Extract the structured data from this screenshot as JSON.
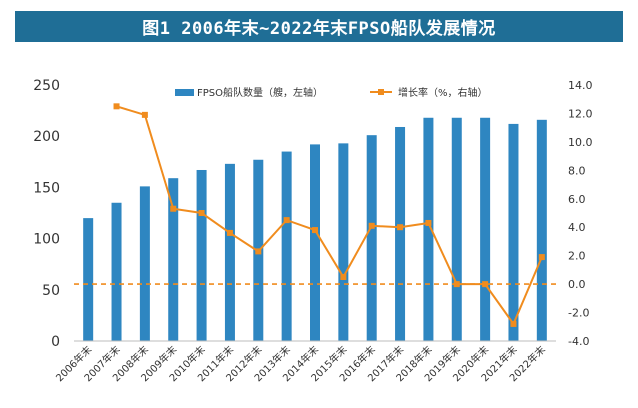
{
  "page": {
    "title": "图1  2006年末~2022年末FPSO船队发展情况"
  },
  "chart_data": {
    "type": "bar",
    "title": "图1  2006年末~2022年末FPSO船队发展情况",
    "categories": [
      "2006年末",
      "2007年末",
      "2008年末",
      "2009年末",
      "2010年末",
      "2011年末",
      "2012年末",
      "2013年末",
      "2014年末",
      "2015年末",
      "2016年末",
      "2017年末",
      "2018年末",
      "2019年末",
      "2020年末",
      "2021年末",
      "2022年末"
    ],
    "series": [
      {
        "name": "FPSO船队数量（艘，左轴）",
        "type": "bar",
        "axis": "left",
        "color": "#2e86c1",
        "values": [
          120,
          135,
          151,
          159,
          167,
          173,
          177,
          185,
          192,
          193,
          201,
          209,
          218,
          218,
          218,
          212,
          216
        ]
      },
      {
        "name": "增长率（%，右轴）",
        "type": "line",
        "axis": "right",
        "color": "#f08c1e",
        "values": [
          null,
          12.5,
          11.9,
          5.3,
          5.0,
          3.6,
          2.3,
          4.5,
          3.8,
          0.5,
          4.1,
          4.0,
          4.3,
          0.0,
          0.0,
          -2.8,
          1.9
        ]
      }
    ],
    "left_axis": {
      "ylim": [
        0,
        250
      ],
      "ticks": [
        0,
        50,
        100,
        150,
        200,
        250
      ]
    },
    "right_axis": {
      "ylim": [
        -4,
        14
      ],
      "ticks": [
        -4.0,
        -2.0,
        0.0,
        2.0,
        4.0,
        6.0,
        8.0,
        10.0,
        12.0,
        14.0
      ],
      "tick_labels": [
        "-4.0",
        "-2.0",
        "0.0",
        "2.0",
        "4.0",
        "6.0",
        "8.0",
        "10.0",
        "12.0",
        "14.0"
      ]
    },
    "reference_line": {
      "axis": "right",
      "value": 0.0,
      "style": "dashed"
    },
    "legend": {
      "placement": "top-center"
    },
    "grid": false
  }
}
